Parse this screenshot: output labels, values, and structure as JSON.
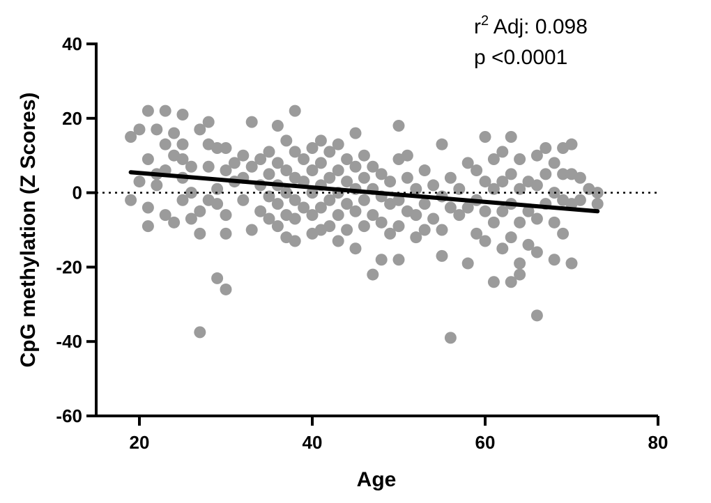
{
  "chart_data": {
    "type": "scatter",
    "title": "",
    "xlabel": "Age",
    "ylabel": "CpG methylation (Z Scores)",
    "xlim": [
      15,
      80
    ],
    "ylim": [
      -60,
      40
    ],
    "x_ticks": [
      20,
      40,
      60,
      80
    ],
    "y_ticks": [
      40,
      20,
      0,
      -20,
      -40,
      -60
    ],
    "x_tick_labels": [
      "20",
      "40",
      "60",
      "80"
    ],
    "y_tick_labels": [
      "40",
      "20",
      "0",
      "-20",
      "-40",
      "-60"
    ],
    "grid": false,
    "reference_line": {
      "y": 0,
      "style": "dotted"
    },
    "regression": {
      "x": [
        19,
        73
      ],
      "y": [
        5.5,
        -5.0
      ]
    },
    "annotations": {
      "r2_prefix": "r",
      "r2_sup": "2",
      "r2_text": " Adj: 0.098",
      "p_text": "p <0.0001"
    },
    "colors": {
      "points": "#9b9b9b",
      "line": "#000000",
      "axis": "#000000"
    },
    "series": [
      {
        "points": [
          [
            19,
            15
          ],
          [
            20,
            17
          ],
          [
            19,
            -2
          ],
          [
            20,
            3
          ],
          [
            21,
            22
          ],
          [
            21,
            -9
          ],
          [
            21,
            -4
          ],
          [
            21,
            9
          ],
          [
            22,
            2
          ],
          [
            22,
            5
          ],
          [
            22,
            17
          ],
          [
            23,
            22
          ],
          [
            23,
            13
          ],
          [
            23,
            -6
          ],
          [
            23,
            6
          ],
          [
            24,
            10
          ],
          [
            24,
            -8
          ],
          [
            24,
            16
          ],
          [
            25,
            21
          ],
          [
            25,
            13
          ],
          [
            25,
            9
          ],
          [
            25,
            -2
          ],
          [
            25,
            4
          ],
          [
            26,
            7
          ],
          [
            26,
            0
          ],
          [
            26,
            -7
          ],
          [
            27,
            17
          ],
          [
            27,
            -11
          ],
          [
            27,
            -5
          ],
          [
            27,
            -37.5
          ],
          [
            28,
            19
          ],
          [
            28,
            13
          ],
          [
            28,
            7
          ],
          [
            28,
            -2
          ],
          [
            29,
            12
          ],
          [
            29,
            1
          ],
          [
            29,
            -3
          ],
          [
            29,
            -23
          ],
          [
            30,
            12
          ],
          [
            30,
            6
          ],
          [
            30,
            -6
          ],
          [
            30,
            -11
          ],
          [
            30,
            -26
          ],
          [
            31,
            3
          ],
          [
            31,
            8
          ],
          [
            32,
            10
          ],
          [
            32,
            4
          ],
          [
            32,
            -2
          ],
          [
            33,
            19
          ],
          [
            33,
            7
          ],
          [
            33,
            -10
          ],
          [
            34,
            9
          ],
          [
            34,
            2
          ],
          [
            34,
            -5
          ],
          [
            35,
            11
          ],
          [
            35,
            5
          ],
          [
            35,
            -1
          ],
          [
            35,
            -7
          ],
          [
            36,
            18
          ],
          [
            36,
            8
          ],
          [
            36,
            2
          ],
          [
            36,
            -3
          ],
          [
            36,
            -9
          ],
          [
            37,
            14
          ],
          [
            37,
            6
          ],
          [
            37,
            0
          ],
          [
            37,
            -6
          ],
          [
            37,
            -12
          ],
          [
            38,
            22
          ],
          [
            38,
            11
          ],
          [
            38,
            4
          ],
          [
            38,
            -2
          ],
          [
            38,
            -7
          ],
          [
            38,
            -13
          ],
          [
            39,
            9
          ],
          [
            39,
            3
          ],
          [
            39,
            -4
          ],
          [
            40,
            12
          ],
          [
            40,
            6
          ],
          [
            40,
            0
          ],
          [
            40,
            -6
          ],
          [
            40,
            -11
          ],
          [
            41,
            14
          ],
          [
            41,
            8
          ],
          [
            41,
            2
          ],
          [
            41,
            -4
          ],
          [
            41,
            -10
          ],
          [
            42,
            11
          ],
          [
            42,
            4
          ],
          [
            42,
            -2
          ],
          [
            42,
            -9
          ],
          [
            43,
            13
          ],
          [
            43,
            6
          ],
          [
            43,
            0
          ],
          [
            43,
            -6
          ],
          [
            43,
            -13
          ],
          [
            44,
            9
          ],
          [
            44,
            3
          ],
          [
            44,
            -3
          ],
          [
            44,
            -10
          ],
          [
            45,
            16
          ],
          [
            45,
            7
          ],
          [
            45,
            1
          ],
          [
            45,
            -5
          ],
          [
            45,
            -15
          ],
          [
            46,
            10
          ],
          [
            46,
            4
          ],
          [
            46,
            -2
          ],
          [
            46,
            -9
          ],
          [
            47,
            7
          ],
          [
            47,
            1
          ],
          [
            47,
            -6
          ],
          [
            47,
            -22
          ],
          [
            48,
            5
          ],
          [
            48,
            -1
          ],
          [
            48,
            -8
          ],
          [
            48,
            -18
          ],
          [
            49,
            3
          ],
          [
            49,
            -3
          ],
          [
            49,
            -11
          ],
          [
            50,
            18
          ],
          [
            50,
            9
          ],
          [
            50,
            -2
          ],
          [
            50,
            -9
          ],
          [
            50,
            -18
          ],
          [
            51,
            10
          ],
          [
            51,
            4
          ],
          [
            51,
            -5
          ],
          [
            52,
            1
          ],
          [
            52,
            -6
          ],
          [
            52,
            -12
          ],
          [
            53,
            6
          ],
          [
            53,
            -3
          ],
          [
            53,
            -10
          ],
          [
            54,
            2
          ],
          [
            54,
            -7
          ],
          [
            55,
            13
          ],
          [
            55,
            -1
          ],
          [
            55,
            -10
          ],
          [
            55,
            -17
          ],
          [
            56,
            4
          ],
          [
            56,
            -4
          ],
          [
            56,
            -39
          ],
          [
            57,
            1
          ],
          [
            57,
            -6
          ],
          [
            58,
            8
          ],
          [
            58,
            -4
          ],
          [
            58,
            -19
          ],
          [
            59,
            6
          ],
          [
            59,
            -2
          ],
          [
            59,
            -11
          ],
          [
            60,
            15
          ],
          [
            60,
            3
          ],
          [
            60,
            -5
          ],
          [
            60,
            -13
          ],
          [
            61,
            9
          ],
          [
            61,
            1
          ],
          [
            61,
            -8
          ],
          [
            61,
            -24
          ],
          [
            62,
            11
          ],
          [
            62,
            3
          ],
          [
            62,
            -5
          ],
          [
            62,
            -15
          ],
          [
            63,
            15
          ],
          [
            63,
            5
          ],
          [
            63,
            -3
          ],
          [
            63,
            -12
          ],
          [
            63,
            -24
          ],
          [
            64,
            9
          ],
          [
            64,
            1
          ],
          [
            64,
            -8
          ],
          [
            64,
            -19
          ],
          [
            64,
            -22
          ],
          [
            65,
            3
          ],
          [
            65,
            -5
          ],
          [
            65,
            -14
          ],
          [
            66,
            10
          ],
          [
            66,
            2
          ],
          [
            66,
            -7
          ],
          [
            66,
            -16
          ],
          [
            66,
            -33
          ],
          [
            67,
            12
          ],
          [
            67,
            5
          ],
          [
            67,
            -3
          ],
          [
            68,
            8
          ],
          [
            68,
            0
          ],
          [
            68,
            -8
          ],
          [
            68,
            -18
          ],
          [
            69,
            12
          ],
          [
            69,
            5
          ],
          [
            69,
            -2
          ],
          [
            69,
            -11
          ],
          [
            70,
            13
          ],
          [
            70,
            5
          ],
          [
            70,
            -3
          ],
          [
            70,
            -19
          ],
          [
            71,
            4
          ],
          [
            71,
            -2
          ],
          [
            72,
            1
          ],
          [
            73,
            0
          ],
          [
            73,
            -3
          ]
        ]
      }
    ]
  }
}
